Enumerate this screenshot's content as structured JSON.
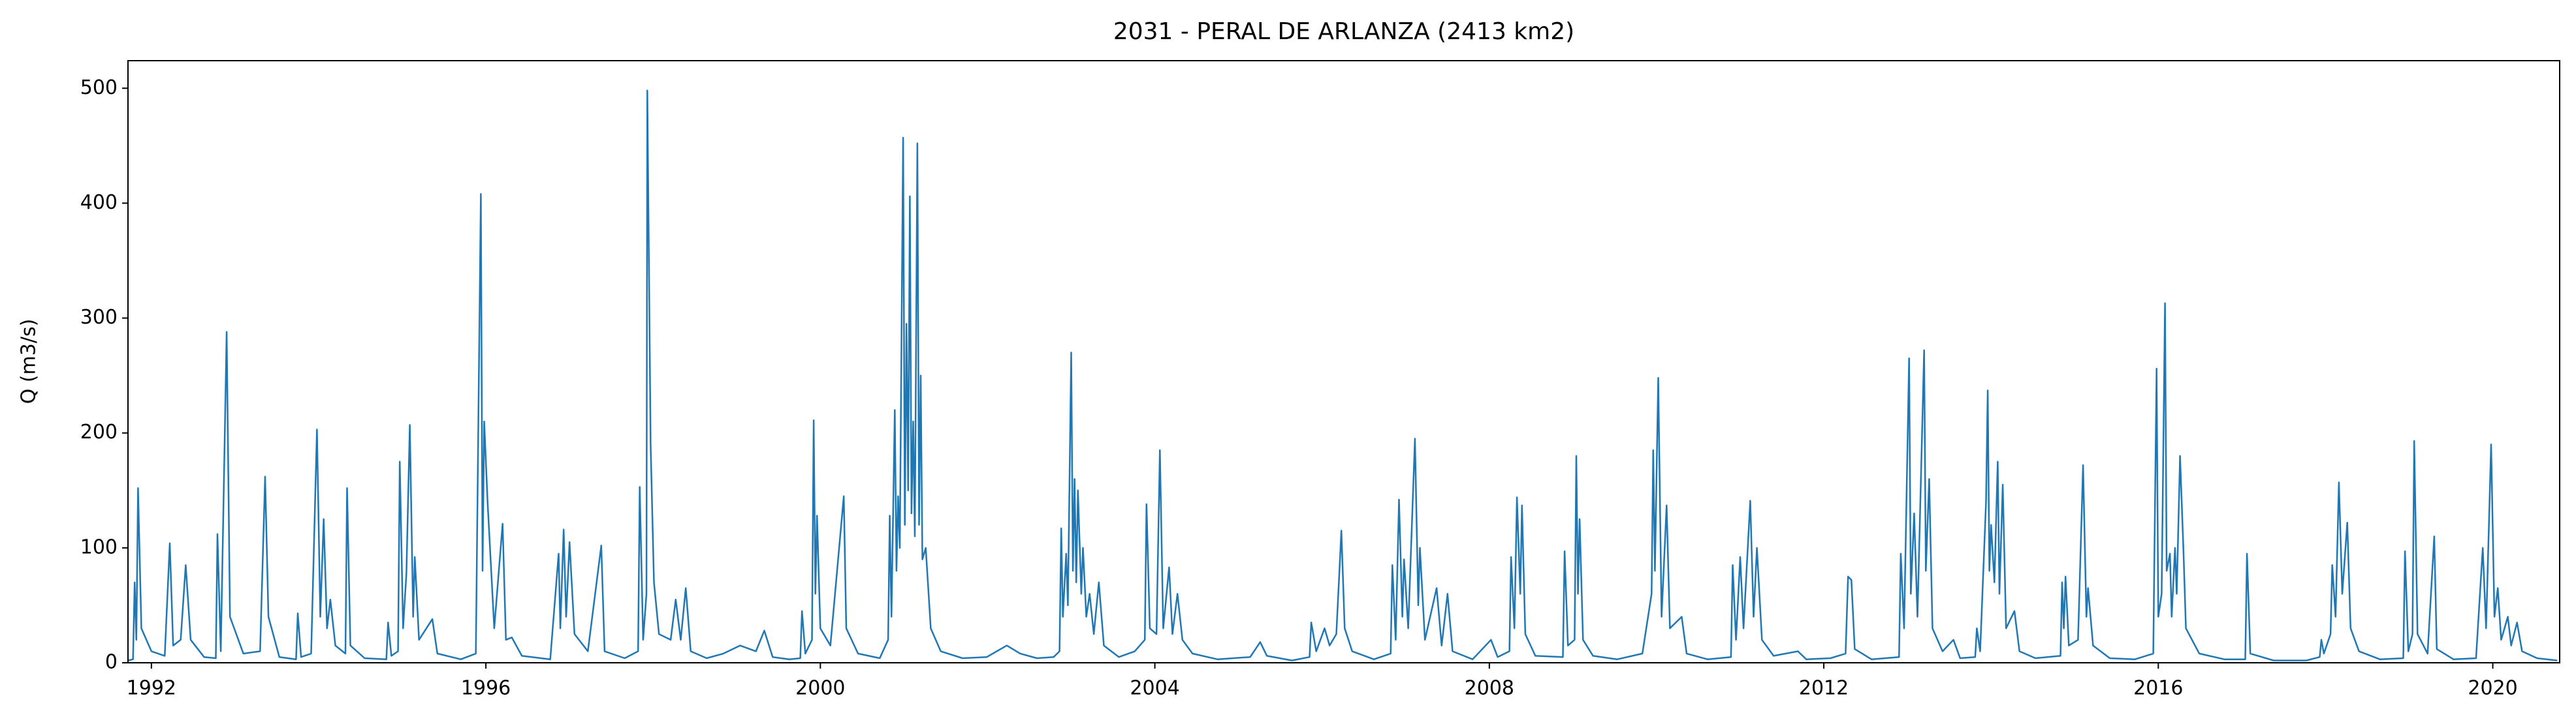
{
  "chart_data": {
    "type": "line",
    "title": "2031 - PERAL DE ARLANZA (2413 km2)",
    "y_label": "Q (m3/s)",
    "xlim": [
      1991.72,
      2020.8
    ],
    "xticks": [
      1992,
      1996,
      2000,
      2004,
      2008,
      2012,
      2016,
      2020
    ],
    "ylim": [
      0,
      524
    ],
    "yticks": [
      0,
      100,
      200,
      300,
      400,
      500
    ],
    "grid": false,
    "x": [
      1991.72,
      1991.78,
      1991.8,
      1991.82,
      1991.84,
      1991.88,
      1992.0,
      1992.16,
      1992.22,
      1992.26,
      1992.35,
      1992.41,
      1992.47,
      1992.63,
      1992.77,
      1992.79,
      1992.83,
      1992.88,
      1992.9,
      1992.94,
      1993.1,
      1993.3,
      1993.36,
      1993.4,
      1993.53,
      1993.73,
      1993.75,
      1993.79,
      1993.91,
      1993.98,
      1994.02,
      1994.06,
      1994.1,
      1994.14,
      1994.2,
      1994.32,
      1994.34,
      1994.38,
      1994.55,
      1994.81,
      1994.83,
      1994.87,
      1994.95,
      1994.97,
      1995.01,
      1995.05,
      1995.09,
      1995.13,
      1995.15,
      1995.2,
      1995.36,
      1995.42,
      1995.7,
      1995.88,
      1995.94,
      1995.96,
      1995.98,
      1996.02,
      1996.06,
      1996.1,
      1996.2,
      1996.24,
      1996.31,
      1996.43,
      1996.77,
      1996.87,
      1996.89,
      1996.93,
      1996.96,
      1997.0,
      1997.06,
      1997.22,
      1997.38,
      1997.42,
      1997.66,
      1997.82,
      1997.84,
      1997.88,
      1997.92,
      1997.93,
      1997.97,
      1998.01,
      1998.07,
      1998.21,
      1998.27,
      1998.33,
      1998.39,
      1998.45,
      1998.64,
      1998.84,
      1999.04,
      1999.23,
      1999.33,
      1999.43,
      1999.63,
      1999.76,
      1999.78,
      1999.82,
      1999.9,
      1999.92,
      1999.94,
      1999.96,
      2000.0,
      2000.12,
      2000.28,
      2000.31,
      2000.45,
      2000.71,
      2000.81,
      2000.83,
      2000.85,
      2000.89,
      2000.91,
      2000.93,
      2000.95,
      2000.99,
      2001.01,
      2001.03,
      2001.05,
      2001.07,
      2001.09,
      2001.11,
      2001.13,
      2001.16,
      2001.18,
      2001.2,
      2001.22,
      2001.26,
      2001.32,
      2001.44,
      2001.7,
      2001.99,
      2002.23,
      2002.39,
      2002.59,
      2002.79,
      2002.86,
      2002.88,
      2002.9,
      2002.94,
      2002.96,
      2003.0,
      2003.02,
      2003.04,
      2003.06,
      2003.08,
      2003.12,
      2003.14,
      2003.18,
      2003.22,
      2003.27,
      2003.33,
      2003.39,
      2003.57,
      2003.76,
      2003.88,
      2003.9,
      2003.94,
      2004.02,
      2004.06,
      2004.1,
      2004.17,
      2004.21,
      2004.27,
      2004.33,
      2004.45,
      2004.75,
      2005.14,
      2005.26,
      2005.34,
      2005.64,
      2005.85,
      2005.87,
      2005.93,
      2006.03,
      2006.09,
      2006.17,
      2006.21,
      2006.23,
      2006.27,
      2006.36,
      2006.62,
      2006.82,
      2006.84,
      2006.88,
      2006.92,
      2006.96,
      2006.98,
      2007.03,
      2007.11,
      2007.15,
      2007.17,
      2007.23,
      2007.37,
      2007.43,
      2007.5,
      2007.56,
      2007.8,
      2008.02,
      2008.1,
      2008.24,
      2008.26,
      2008.3,
      2008.33,
      2008.37,
      2008.39,
      2008.43,
      2008.55,
      2008.88,
      2008.9,
      2008.94,
      2009.02,
      2009.04,
      2009.06,
      2009.08,
      2009.12,
      2009.24,
      2009.53,
      2009.83,
      2009.94,
      2009.96,
      2009.98,
      2010.02,
      2010.06,
      2010.12,
      2010.16,
      2010.3,
      2010.36,
      2010.61,
      2010.89,
      2010.91,
      2010.95,
      2011.0,
      2011.04,
      2011.12,
      2011.16,
      2011.2,
      2011.26,
      2011.4,
      2011.69,
      2011.79,
      2012.08,
      2012.26,
      2012.29,
      2012.33,
      2012.37,
      2012.57,
      2012.9,
      2012.92,
      2012.96,
      2013.02,
      2013.04,
      2013.08,
      2013.12,
      2013.2,
      2013.22,
      2013.26,
      2013.3,
      2013.42,
      2013.55,
      2013.63,
      2013.81,
      2013.83,
      2013.87,
      2013.94,
      2013.96,
      2013.98,
      2014.0,
      2014.04,
      2014.08,
      2014.1,
      2014.14,
      2014.18,
      2014.28,
      2014.34,
      2014.53,
      2014.83,
      2014.85,
      2014.87,
      2014.89,
      2014.93,
      2015.04,
      2015.1,
      2015.14,
      2015.16,
      2015.22,
      2015.42,
      2015.72,
      2015.94,
      2015.98,
      2016.0,
      2016.04,
      2016.08,
      2016.1,
      2016.14,
      2016.16,
      2016.2,
      2016.22,
      2016.26,
      2016.3,
      2016.33,
      2016.49,
      2016.79,
      2017.04,
      2017.06,
      2017.1,
      2017.38,
      2017.77,
      2017.93,
      2017.95,
      2017.98,
      2018.06,
      2018.08,
      2018.12,
      2018.16,
      2018.2,
      2018.26,
      2018.3,
      2018.4,
      2018.65,
      2018.93,
      2018.95,
      2018.99,
      2019.04,
      2019.06,
      2019.1,
      2019.22,
      2019.3,
      2019.33,
      2019.53,
      2019.8,
      2019.88,
      2019.92,
      2019.98,
      2020.02,
      2020.06,
      2020.1,
      2020.18,
      2020.22,
      2020.29,
      2020.35,
      2020.53,
      2020.77
    ],
    "series": [
      {
        "name": "Q",
        "color": "#1f77b4",
        "values": [
          2,
          3,
          70,
          20,
          152,
          30,
          10,
          6,
          104,
          15,
          20,
          85,
          20,
          5,
          4,
          112,
          10,
          210,
          288,
          40,
          8,
          10,
          162,
          40,
          5,
          3,
          43,
          5,
          8,
          203,
          40,
          125,
          30,
          55,
          15,
          8,
          152,
          15,
          4,
          3,
          35,
          6,
          10,
          175,
          30,
          78,
          207,
          40,
          92,
          20,
          38,
          8,
          3,
          8,
          408,
          80,
          210,
          140,
          85,
          30,
          121,
          20,
          22,
          6,
          3,
          95,
          30,
          116,
          40,
          105,
          25,
          10,
          102,
          10,
          4,
          10,
          153,
          20,
          60,
          498,
          190,
          70,
          25,
          20,
          55,
          20,
          65,
          10,
          4,
          8,
          15,
          10,
          28,
          5,
          3,
          4,
          45,
          8,
          20,
          211,
          60,
          128,
          30,
          15,
          145,
          30,
          8,
          4,
          20,
          128,
          40,
          220,
          80,
          145,
          100,
          457,
          120,
          295,
          150,
          406,
          130,
          210,
          110,
          452,
          120,
          250,
          90,
          100,
          30,
          10,
          4,
          5,
          15,
          8,
          4,
          5,
          10,
          117,
          40,
          95,
          50,
          270,
          80,
          160,
          70,
          150,
          60,
          100,
          40,
          60,
          25,
          70,
          15,
          5,
          10,
          20,
          138,
          30,
          25,
          185,
          30,
          83,
          25,
          60,
          20,
          8,
          3,
          5,
          18,
          6,
          2,
          5,
          35,
          10,
          30,
          15,
          25,
          84,
          115,
          30,
          10,
          3,
          8,
          85,
          20,
          142,
          40,
          90,
          30,
          195,
          50,
          100,
          20,
          65,
          15,
          60,
          10,
          3,
          20,
          5,
          10,
          92,
          30,
          144,
          60,
          137,
          25,
          6,
          5,
          97,
          15,
          20,
          180,
          60,
          125,
          20,
          6,
          3,
          8,
          60,
          185,
          80,
          248,
          40,
          137,
          30,
          40,
          8,
          3,
          5,
          85,
          20,
          92,
          30,
          141,
          40,
          100,
          20,
          6,
          10,
          3,
          4,
          8,
          75,
          72,
          12,
          3,
          5,
          95,
          30,
          265,
          60,
          130,
          40,
          272,
          80,
          160,
          30,
          10,
          20,
          4,
          5,
          30,
          10,
          140,
          237,
          80,
          120,
          70,
          175,
          60,
          155,
          30,
          45,
          10,
          4,
          6,
          70,
          30,
          75,
          15,
          20,
          172,
          40,
          65,
          15,
          4,
          3,
          8,
          256,
          40,
          60,
          313,
          80,
          95,
          40,
          100,
          60,
          180,
          100,
          30,
          8,
          3,
          3,
          95,
          8,
          2,
          2,
          5,
          20,
          8,
          25,
          85,
          40,
          157,
          60,
          122,
          30,
          10,
          3,
          4,
          97,
          10,
          25,
          193,
          25,
          8,
          110,
          12,
          3,
          4,
          100,
          30,
          190,
          40,
          65,
          20,
          40,
          15,
          35,
          10,
          4,
          2
        ]
      }
    ]
  }
}
